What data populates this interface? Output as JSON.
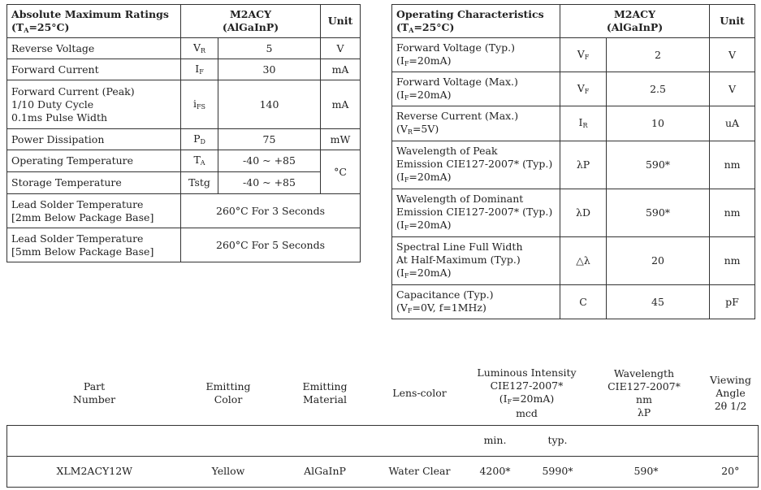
{
  "abs": {
    "title_line1": "Absolute Maximum Ratings",
    "title_line2_pre": "(T",
    "title_line2_sub": "A",
    "title_line2_post": "=25°C)",
    "part_line1": "M2ACY",
    "part_line2": "(AlGaInP)",
    "unit_header": "Unit",
    "rows": [
      {
        "param": [
          "Reverse Voltage"
        ],
        "sym": "V",
        "sym_sub": "R",
        "value": "5",
        "unit": "V"
      },
      {
        "param": [
          "Forward Current"
        ],
        "sym": "I",
        "sym_sub": "F",
        "value": "30",
        "unit": "mA"
      },
      {
        "param": [
          "Forward Current (Peak)",
          "1/10 Duty Cycle",
          "0.1ms Pulse Width"
        ],
        "sym": "i",
        "sym_sub": "FS",
        "value": "140",
        "unit": "mA"
      },
      {
        "param": [
          "Power Dissipation"
        ],
        "sym": "P",
        "sym_sub": "D",
        "value": "75",
        "unit": "mW"
      },
      {
        "param": [
          "Operating Temperature"
        ],
        "sym": "T",
        "sym_sub": "A",
        "value": "-40 ~ +85",
        "unit": "°C"
      },
      {
        "param": [
          "Storage Temperature"
        ],
        "sym": "Tstg",
        "sym_sub": "",
        "value": "-40 ~ +85"
      },
      {
        "param": [
          "Lead Solder Temperature",
          "[2mm Below Package Base]"
        ],
        "value": "260°C For 3 Seconds"
      },
      {
        "param": [
          "Lead Solder Temperature",
          "[5mm Below Package Base]"
        ],
        "value": "260°C For 5 Seconds"
      }
    ]
  },
  "op": {
    "title_line1": "Operating Characteristics",
    "title_line2_pre": "(T",
    "title_line2_sub": "A",
    "title_line2_post": "=25°C)",
    "part_line1": "M2ACY",
    "part_line2": "(AlGaInP)",
    "unit_header": "Unit",
    "rows": [
      {
        "param1": "Forward Voltage (Typ.)",
        "cond_pre": "(I",
        "cond_sub": "F",
        "cond_post": "=20mA)",
        "sym": "V",
        "sym_sub": "F",
        "value": "2",
        "unit": "V"
      },
      {
        "param1": "Forward Voltage (Max.)",
        "cond_pre": "(I",
        "cond_sub": "F",
        "cond_post": "=20mA)",
        "sym": "V",
        "sym_sub": "F",
        "value": "2.5",
        "unit": "V"
      },
      {
        "param1": "Reverse Current (Max.)",
        "cond_pre": "(V",
        "cond_sub": "R",
        "cond_post": "=5V)",
        "sym": "I",
        "sym_sub": "R",
        "value": "10",
        "unit": "uA"
      },
      {
        "param1": "Wavelength of Peak",
        "param2": "Emission CIE127-2007* (Typ.)",
        "cond_pre": "(I",
        "cond_sub": "F",
        "cond_post": "=20mA)",
        "sym": "λP",
        "sym_sub": "",
        "value": "590*",
        "unit": "nm"
      },
      {
        "param1": "Wavelength of Dominant",
        "param2": "Emission CIE127-2007* (Typ.)",
        "cond_pre": "(I",
        "cond_sub": "F",
        "cond_post": "=20mA)",
        "sym": "λD",
        "sym_sub": "",
        "value": "590*",
        "unit": "nm"
      },
      {
        "param1": "Spectral Line Full Width",
        "param2": "At Half-Maximum (Typ.)",
        "cond_pre": "(I",
        "cond_sub": "F",
        "cond_post": "=20mA)",
        "sym": "△λ",
        "sym_sub": "",
        "value": "20",
        "unit": "nm"
      },
      {
        "param1": "Capacitance (Typ.)",
        "cond_pre": "(V",
        "cond_sub": "F",
        "cond_post": "=0V, f=1MHz)",
        "sym": "C",
        "sym_sub": "",
        "value": "45",
        "unit": "pF"
      }
    ]
  },
  "parts": {
    "headers": {
      "part_number": [
        "Part",
        "Number"
      ],
      "emitting_color": [
        "Emitting",
        "Color"
      ],
      "emitting_material": [
        "Emitting",
        "Material"
      ],
      "lens_color": [
        "Lens-color"
      ],
      "luminous": {
        "l1": "Luminous Intensity",
        "l2": "CIE127-2007*",
        "l3_pre": "(I",
        "l3_sub": "F",
        "l3_post": "=20mA)",
        "l4": "mcd"
      },
      "wavelength": [
        "Wavelength",
        "CIE127-2007*",
        "nm",
        "λP"
      ],
      "viewing": [
        "Viewing",
        "Angle",
        "2θ 1/2"
      ]
    },
    "sub": {
      "min": "min.",
      "typ": "typ."
    },
    "row": {
      "part_number": "XLM2ACY12W",
      "emitting_color": "Yellow",
      "emitting_material": "AlGaInP",
      "lens_color": "Water Clear",
      "lum_min": "4200*",
      "lum_typ": "5990*",
      "wavelength": "590*",
      "viewing": "20°"
    }
  }
}
